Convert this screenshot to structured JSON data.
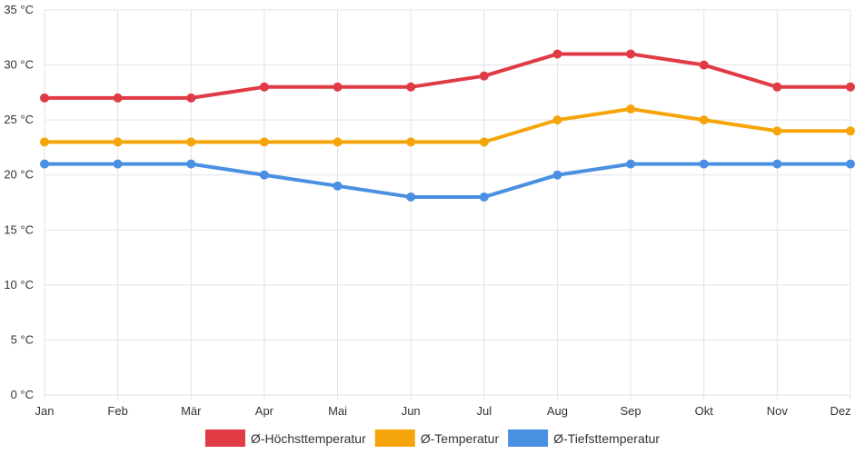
{
  "chart_data": {
    "type": "line",
    "title": "",
    "xlabel": "",
    "ylabel": "",
    "categories": [
      "Jan",
      "Feb",
      "Mär",
      "Apr",
      "Mai",
      "Jun",
      "Jul",
      "Aug",
      "Sep",
      "Okt",
      "Nov",
      "Dez"
    ],
    "ylim": [
      0,
      35
    ],
    "ytick_step": 5,
    "yunit": " °C",
    "grid": true,
    "legend_position": "bottom-center",
    "series": [
      {
        "name": "Ø-Höchsttemperatur",
        "color": "#e03a44",
        "values": [
          27,
          27,
          27,
          28,
          28,
          28,
          29,
          31,
          31,
          30,
          28,
          28
        ]
      },
      {
        "name": "Ø-Temperatur",
        "color": "#f5a50a",
        "values": [
          23,
          23,
          23,
          23,
          23,
          23,
          23,
          25,
          26,
          25,
          24,
          24
        ]
      },
      {
        "name": "Ø-Tiefsttemperatur",
        "color": "#4a90e2",
        "values": [
          21,
          21,
          21,
          20,
          19,
          18,
          18,
          20,
          21,
          21,
          21,
          21
        ]
      }
    ]
  }
}
